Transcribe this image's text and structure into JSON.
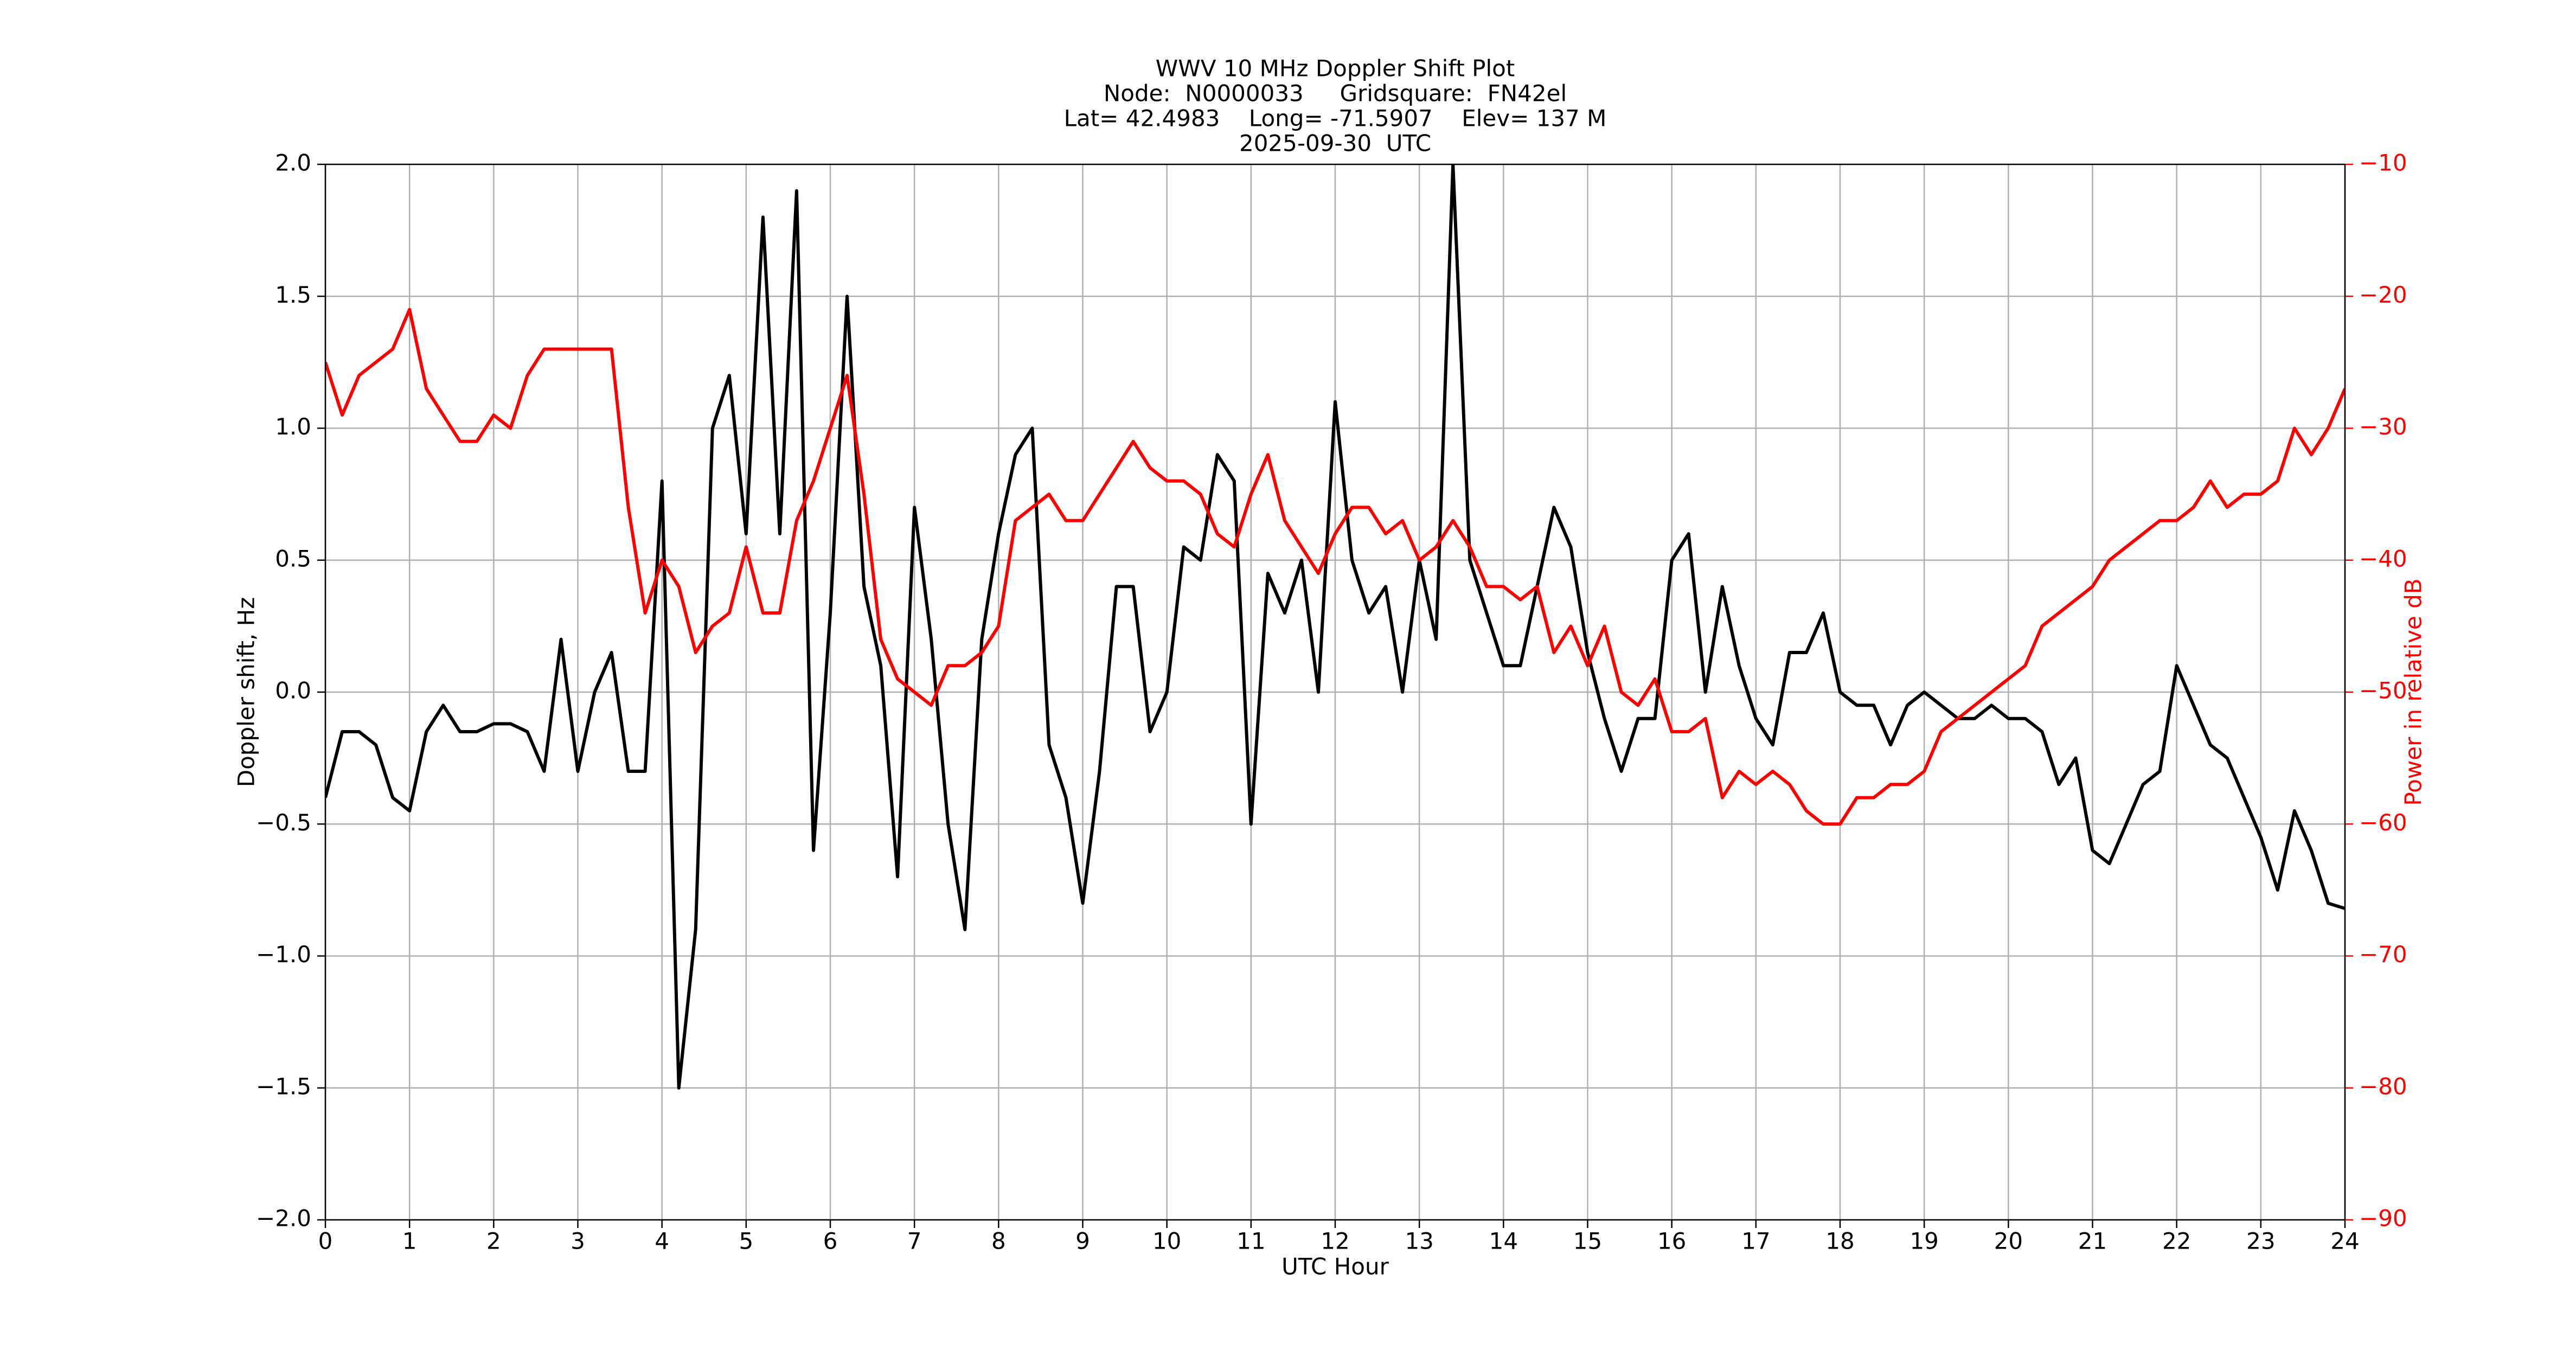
{
  "chart_data": {
    "type": "line",
    "title": [
      "WWV 10 MHz Doppler Shift Plot",
      "Node:  N0000033     Gridsquare:  FN42el",
      "Lat= 42.4983    Long= -71.5907    Elev= 137 M",
      "2025-09-30  UTC"
    ],
    "x_label": "UTC Hour",
    "y_label": "Doppler shift, Hz",
    "y2_label": "Power in relative dB",
    "x": [
      0,
      0.2,
      0.4,
      0.6,
      0.8,
      1,
      1.2,
      1.4,
      1.6,
      1.8,
      2,
      2.2,
      2.4,
      2.6,
      2.8,
      3,
      3.2,
      3.4,
      3.6,
      3.8,
      4,
      4.2,
      4.4,
      4.6,
      4.8,
      5,
      5.2,
      5.4,
      5.6,
      5.8,
      6,
      6.2,
      6.4,
      6.6,
      6.8,
      7,
      7.2,
      7.4,
      7.6,
      7.8,
      8,
      8.2,
      8.4,
      8.6,
      8.8,
      9,
      9.2,
      9.4,
      9.6,
      9.8,
      10,
      10.2,
      10.4,
      10.6,
      10.8,
      11,
      11.2,
      11.4,
      11.6,
      11.8,
      12,
      12.2,
      12.4,
      12.6,
      12.8,
      13,
      13.2,
      13.4,
      13.6,
      13.8,
      14,
      14.2,
      14.4,
      14.6,
      14.8,
      15,
      15.2,
      15.4,
      15.6,
      15.8,
      16,
      16.2,
      16.4,
      16.6,
      16.8,
      17,
      17.2,
      17.4,
      17.6,
      17.8,
      18,
      18.2,
      18.4,
      18.6,
      18.8,
      19,
      19.2,
      19.4,
      19.6,
      19.8,
      20,
      20.2,
      20.4,
      20.6,
      20.8,
      21,
      21.2,
      21.4,
      21.6,
      21.8,
      22,
      22.2,
      22.4,
      22.6,
      22.8,
      23,
      23.2,
      23.4,
      23.6,
      23.8,
      24
    ],
    "series": [
      {
        "color": "#000000",
        "values": [
          -0.4,
          -0.15,
          -0.15,
          -0.2,
          -0.4,
          -0.45,
          -0.15,
          -0.05,
          -0.15,
          -0.15,
          -0.12,
          -0.12,
          -0.15,
          -0.3,
          0.2,
          -0.3,
          0,
          0.15,
          -0.3,
          -0.3,
          0.8,
          -1.5,
          -0.9,
          1.0,
          1.2,
          0.6,
          1.8,
          0.6,
          1.9,
          -0.6,
          0.3,
          1.5,
          0.4,
          0.1,
          -0.7,
          0.7,
          0.2,
          -0.5,
          -0.9,
          0.2,
          0.6,
          0.9,
          1.0,
          -0.2,
          -0.4,
          -0.8,
          -0.3,
          0.4,
          0.4,
          -0.15,
          0,
          0.55,
          0.5,
          0.9,
          0.8,
          -0.5,
          0.45,
          0.3,
          0.5,
          0,
          1.1,
          0.5,
          0.3,
          0.4,
          0,
          0.5,
          0.2,
          2.0,
          0.5,
          0.3,
          0.1,
          0.1,
          0.4,
          0.7,
          0.55,
          0.15,
          -0.1,
          -0.3,
          -0.1,
          -0.1,
          0.5,
          0.6,
          0,
          0.4,
          0.1,
          -0.1,
          -0.2,
          0.15,
          0.15,
          0.3,
          0,
          -0.05,
          -0.05,
          -0.2,
          -0.05,
          0,
          -0.05,
          -0.1,
          -0.1,
          -0.05,
          -0.1,
          -0.1,
          -0.15,
          -0.35,
          -0.25,
          -0.6,
          -0.65,
          -0.5,
          -0.35,
          -0.3,
          0.1,
          -0.05,
          -0.2,
          -0.25,
          -0.4,
          -0.55,
          -0.75,
          -0.45,
          -0.6,
          -0.8,
          -0.82
        ]
      },
      {
        "color": "#ff0000",
        "axis": "y2",
        "values": [
          -25,
          -29,
          -26,
          -25,
          -24,
          -21,
          -27,
          -29,
          -31,
          -31,
          -29,
          -30,
          -26,
          -24,
          -24,
          -24,
          -24,
          -24,
          -36,
          -44,
          -40,
          -42,
          -47,
          -45,
          -44,
          -39,
          -44,
          -44,
          -37,
          -34,
          -30,
          -26,
          -35,
          -46,
          -49,
          -50,
          -51,
          -48,
          -48,
          -47,
          -45,
          -37,
          -36,
          -35,
          -37,
          -37,
          -35,
          -33,
          -31,
          -33,
          -34,
          -34,
          -35,
          -38,
          -39,
          -35,
          -32,
          -37,
          -39,
          -41,
          -38,
          -36,
          -36,
          -38,
          -37,
          -40,
          -39,
          -37,
          -39,
          -42,
          -42,
          -43,
          -42,
          -47,
          -45,
          -48,
          -45,
          -50,
          -51,
          -49,
          -53,
          -53,
          -52,
          -58,
          -56,
          -57,
          -56,
          -57,
          -59,
          -60,
          -60,
          -58,
          -58,
          -57,
          -57,
          -56,
          -53,
          -52,
          -51,
          -50,
          -49,
          -48,
          -45,
          -44,
          -43,
          -42,
          -40,
          -39,
          -38,
          -37,
          -37,
          -36,
          -34,
          -36,
          -35,
          -35,
          -34,
          -30,
          -32,
          -30,
          -27
        ]
      }
    ],
    "xlim": [
      0,
      24
    ],
    "xticks": [
      0,
      1,
      2,
      3,
      4,
      5,
      6,
      7,
      8,
      9,
      10,
      11,
      12,
      13,
      14,
      15,
      16,
      17,
      18,
      19,
      20,
      21,
      22,
      23,
      24
    ],
    "ylim": [
      -2,
      2
    ],
    "yticks": [
      {
        "value": -2,
        "label": "−2.0"
      },
      {
        "value": -1.5,
        "label": "−1.5"
      },
      {
        "value": -1,
        "label": "−1.0"
      },
      {
        "value": -0.5,
        "label": "−0.5"
      },
      {
        "value": 0,
        "label": "0.0"
      },
      0.5,
      {
        "value": 1,
        "label": "1.0"
      },
      1.5,
      {
        "value": 2,
        "label": "2.0"
      }
    ],
    "y2lim": [
      -90,
      -10
    ],
    "y2ticks": [
      {
        "value": -90,
        "label": "−90"
      },
      {
        "value": -80,
        "label": "−80"
      },
      {
        "value": -70,
        "label": "−70"
      },
      {
        "value": -60,
        "label": "−60"
      },
      {
        "value": -50,
        "label": "−50"
      },
      {
        "value": -40,
        "label": "−40"
      },
      {
        "value": -30,
        "label": "−30"
      },
      {
        "value": -20,
        "label": "−20"
      },
      {
        "value": -10,
        "label": "−10"
      }
    ],
    "y2_color": "#ff0000",
    "grid": true
  }
}
